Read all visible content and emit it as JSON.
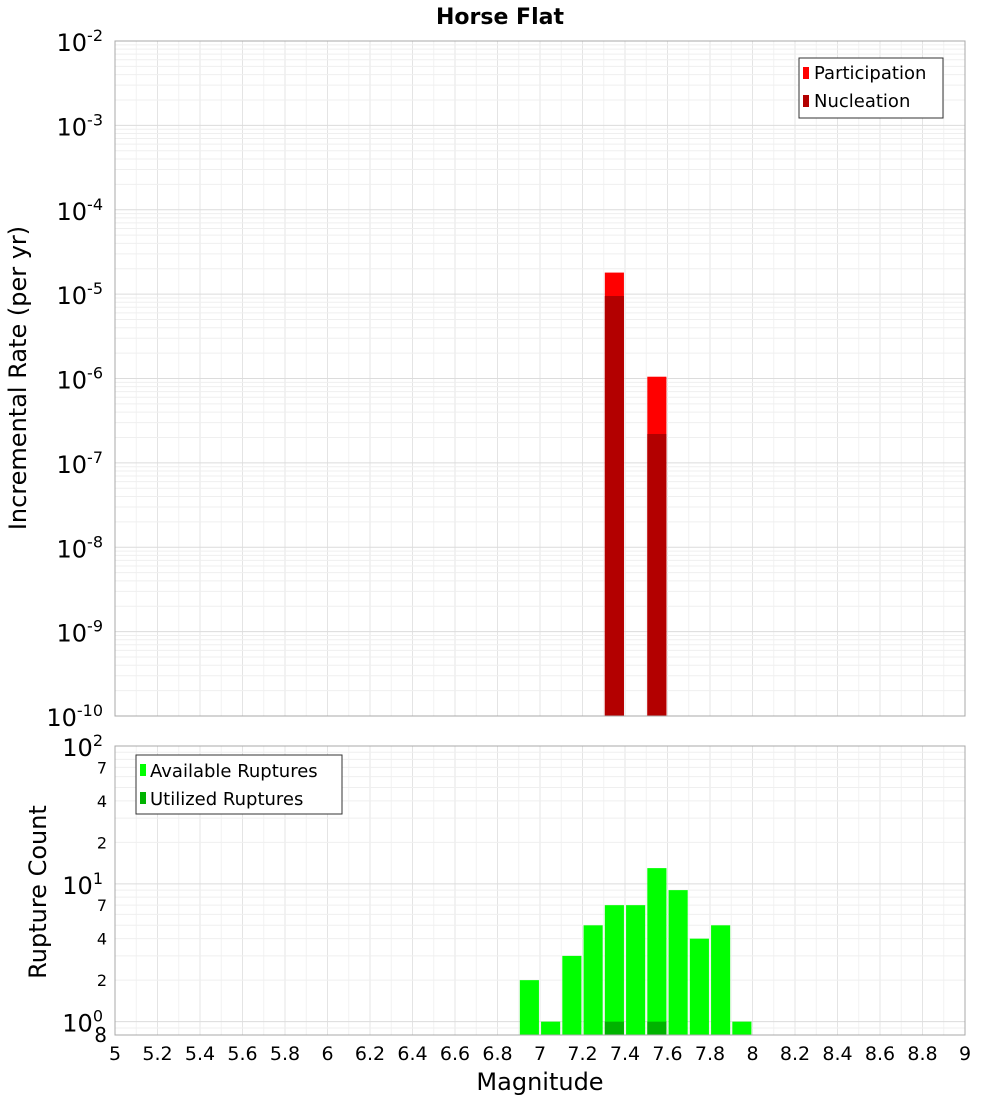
{
  "chart_data": [
    {
      "type": "bar",
      "title": "Horse Flat",
      "xlabel": "",
      "ylabel": "Incremental Rate (per yr)",
      "yscale": "log",
      "ylim": [
        1e-10,
        0.01
      ],
      "xlim": [
        5,
        9
      ],
      "bar_width": 0.09,
      "y_tick_exponents": [
        "-10",
        "-9",
        "-8",
        "-7",
        "-6",
        "-5",
        "-4",
        "-3",
        "-2"
      ],
      "y_tick_base": "10",
      "legend": {
        "position": "top-right",
        "entries": [
          "Participation",
          "Nucleation"
        ]
      },
      "series": [
        {
          "name": "Participation",
          "color": "#ff0000",
          "x": [
            7.35,
            7.55
          ],
          "values": [
            1.8e-05,
            1.05e-06
          ]
        },
        {
          "name": "Nucleation",
          "color": "#b30000",
          "x": [
            7.35,
            7.55
          ],
          "values": [
            9.5e-06,
            2.2e-07
          ]
        }
      ]
    },
    {
      "type": "bar",
      "title": "",
      "xlabel": "Magnitude",
      "ylabel": "Rupture Count",
      "yscale": "log",
      "ylim": [
        0.8,
        100
      ],
      "xlim": [
        5,
        9
      ],
      "bar_width": 0.09,
      "x_ticks": [
        "5",
        "5.2",
        "5.4",
        "5.6",
        "5.8",
        "6",
        "6.2",
        "6.4",
        "6.6",
        "6.8",
        "7",
        "7.2",
        "7.4",
        "7.6",
        "7.8",
        "8",
        "8.2",
        "8.4",
        "8.6",
        "8.8",
        "9"
      ],
      "y_major_ticks": [
        {
          "base": "10",
          "exp": "0",
          "value": 1
        },
        {
          "base": "10",
          "exp": "1",
          "value": 10
        },
        {
          "base": "10",
          "exp": "2",
          "value": 100
        }
      ],
      "y_minor_ticks": [
        {
          "label": "8",
          "value": 0.8
        },
        {
          "label": "2",
          "value": 2
        },
        {
          "label": "4",
          "value": 4
        },
        {
          "label": "7",
          "value": 7
        },
        {
          "label": "2",
          "value": 20
        },
        {
          "label": "4",
          "value": 40
        },
        {
          "label": "7",
          "value": 70
        }
      ],
      "legend": {
        "position": "top-left",
        "entries": [
          "Available Ruptures",
          "Utilized Ruptures"
        ]
      },
      "series": [
        {
          "name": "Available Ruptures",
          "color": "#00ff00",
          "x": [
            6.95,
            7.05,
            7.15,
            7.25,
            7.35,
            7.45,
            7.55,
            7.65,
            7.75,
            7.85,
            7.95
          ],
          "values": [
            2,
            1,
            3,
            5,
            7,
            7,
            13,
            9,
            4,
            5,
            1
          ]
        },
        {
          "name": "Utilized Ruptures",
          "color": "#00b300",
          "x": [
            7.35,
            7.55
          ],
          "values": [
            1,
            1
          ]
        }
      ]
    }
  ]
}
